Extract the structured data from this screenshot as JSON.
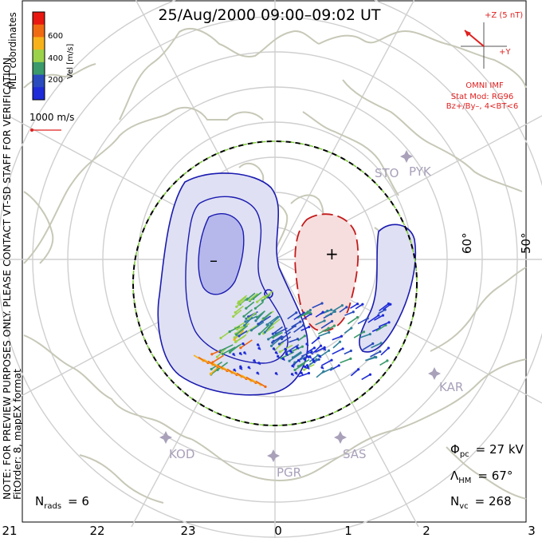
{
  "title": "25/Aug/2000 09:00–09:02 UT",
  "side_note": "NOTE: FOR PREVIEW PURPOSES ONLY. PLEASE CONTACT VT-SD STAFF FOR VERIFICATION.",
  "coord_label": "MLT coordinates",
  "fit_label": "FitOrder: 8, mapEX format",
  "colorbar": {
    "label": "Vel [m/s]",
    "ticks": [
      "600",
      "400",
      "200"
    ],
    "colors": [
      "#e8170f",
      "#f06a12",
      "#f7b21a",
      "#9bd24a",
      "#3a9a6a",
      "#2a4bbd",
      "#1d2bd8"
    ]
  },
  "vector_scale": "1000 m/s",
  "imf": {
    "z_label": "+Z (5 nT)",
    "y_label": "+Y",
    "source": "OMNI IMF",
    "model": "Stat Mod: RG96",
    "conditions": "Bz+/By–, 4<BT<6"
  },
  "stations": [
    "STO",
    "PYK",
    "KAR",
    "SAS",
    "PGR",
    "KOD"
  ],
  "lat_labels": [
    "60°",
    "50°"
  ],
  "contour_marks": {
    "minus": "–",
    "plus": "+"
  },
  "mlt_labels": [
    "21",
    "22",
    "23",
    "0",
    "1",
    "2",
    "3"
  ],
  "stats": {
    "phi_label": "Φ",
    "phi_sub": "pc",
    "phi_value": "= 27 kV",
    "lambda_label": "Λ",
    "lambda_sub": "HM",
    "lambda_value": "= 67°",
    "nvc_label": "N",
    "nvc_sub": "vc",
    "nvc_value": "= 268",
    "nrads_label": "N",
    "nrads_sub": "rads",
    "nrads_value": "= 6"
  },
  "colors": {
    "map_line": "#c8c8b8",
    "grid": "#cfcfcf",
    "neg_fill": "#dfe0f3",
    "neg_fill_inner": "#b6b8ec",
    "neg_line": "#1b1bb0",
    "pos_fill": "#f6dede",
    "pos_line": "#c41a1a",
    "imf_red": "#e02020",
    "station": "#a9a0b9"
  }
}
